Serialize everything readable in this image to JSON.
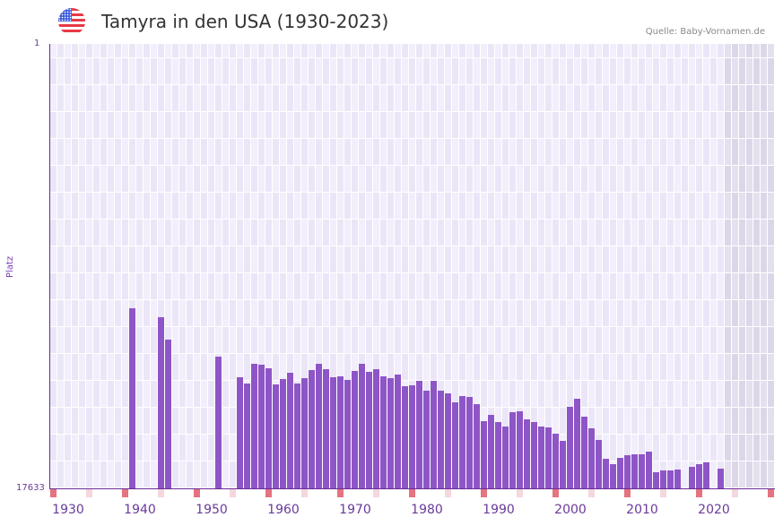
{
  "header": {
    "title": "Tamyra in den USA (1930-2023)",
    "flag_icon": "us-flag-icon",
    "source": "Quelle: Baby-Vornamen.de"
  },
  "colors": {
    "bar": "#8e55c7",
    "axis": "#6a2a9a",
    "grid_a": "#f2eefb",
    "grid_b": "#ebe6f7",
    "future_a": "#e4e0ee",
    "future_b": "#dcd7e8",
    "marker_decade": "#e57380",
    "marker_half": "#f5d7de"
  },
  "chart_data": {
    "type": "bar",
    "title": "Tamyra in den USA (1930-2023)",
    "xlabel": "",
    "ylabel": "Platz",
    "y_axis_inverted": true,
    "ylim": [
      17633,
      1
    ],
    "ytick_labels": [
      "1",
      "17633"
    ],
    "x_range": [
      1928,
      2028
    ],
    "xtick_labels": [
      "1930",
      "1940",
      "1950",
      "1960",
      "1970",
      "1980",
      "1990",
      "2000",
      "2010",
      "2020"
    ],
    "shaded_from_year": 2022,
    "grid": true,
    "legend": null,
    "x": [
      1939,
      1943,
      1944,
      1951,
      1954,
      1955,
      1956,
      1957,
      1958,
      1959,
      1960,
      1961,
      1962,
      1963,
      1964,
      1965,
      1966,
      1967,
      1968,
      1969,
      1970,
      1971,
      1972,
      1973,
      1974,
      1975,
      1976,
      1977,
      1978,
      1979,
      1980,
      1981,
      1982,
      1983,
      1984,
      1985,
      1986,
      1987,
      1988,
      1989,
      1990,
      1991,
      1992,
      1993,
      1994,
      1995,
      1996,
      1997,
      1998,
      1999,
      2000,
      2001,
      2002,
      2003,
      2004,
      2005,
      2006,
      2007,
      2008,
      2009,
      2010,
      2011,
      2012,
      2013,
      2014,
      2015,
      2017,
      2018,
      2019,
      2021
    ],
    "values": [
      10488,
      10843,
      11732,
      12407,
      13225,
      13474,
      12692,
      12727,
      12870,
      13509,
      13296,
      13047,
      13474,
      13261,
      12941,
      12692,
      12905,
      13225,
      13189,
      13332,
      12976,
      12692,
      13012,
      12905,
      13189,
      13261,
      13118,
      13580,
      13545,
      13367,
      13758,
      13367,
      13758,
      13865,
      14220,
      13971,
      14007,
      14291,
      14967,
      14718,
      15002,
      15180,
      14611,
      14576,
      14896,
      15002,
      15180,
      15216,
      15464,
      15749,
      14398,
      14078,
      14789,
      15251,
      15713,
      16460,
      16673,
      16424,
      16318,
      16282,
      16282,
      16175,
      16993,
      16922,
      16922,
      16886,
      16780,
      16673,
      16602,
      16851
    ]
  }
}
